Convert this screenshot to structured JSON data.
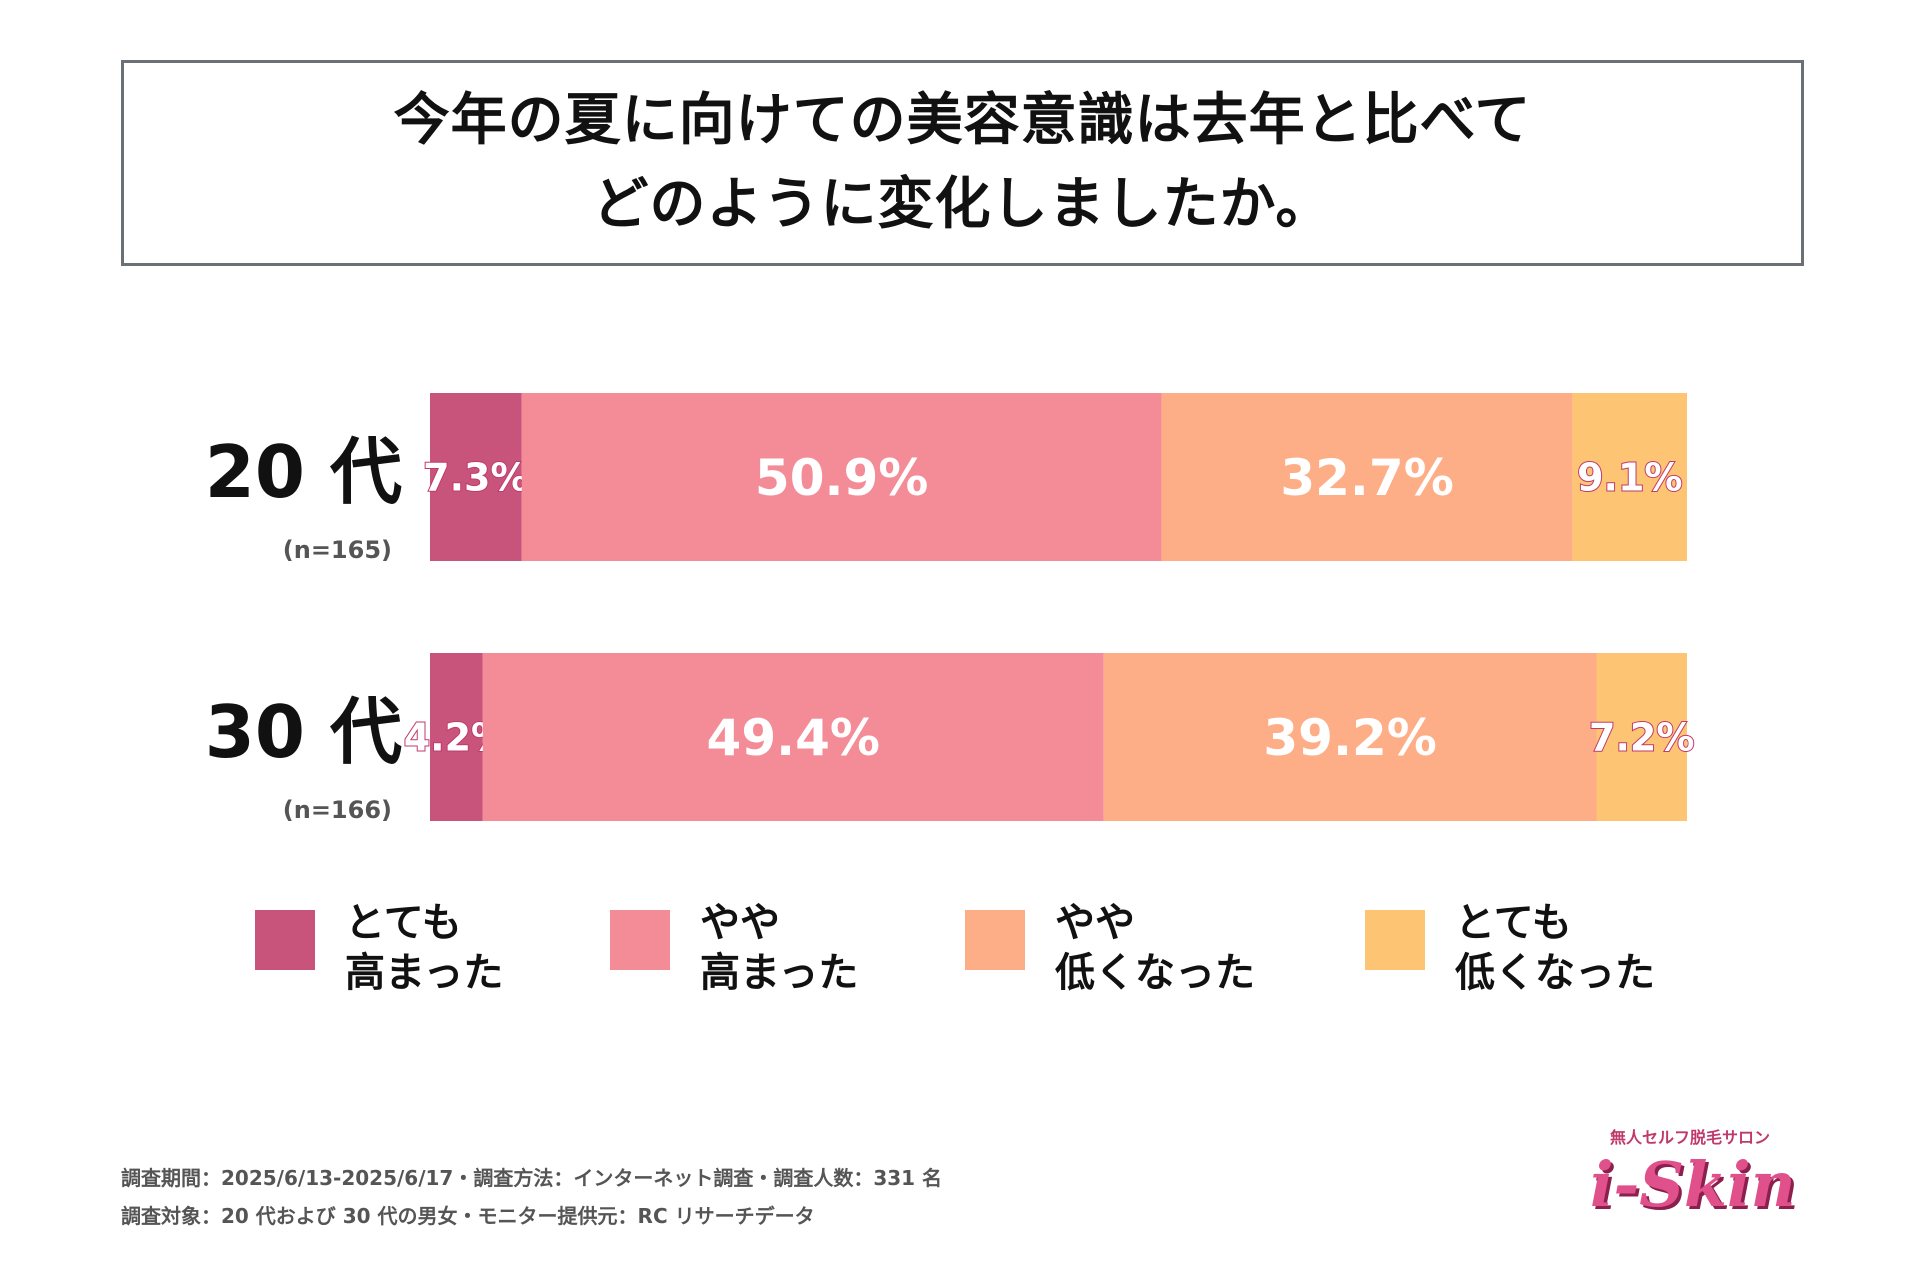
{
  "title": {
    "line1": "今年の夏に向けての美容意識は去年と比べて",
    "line2": "どのように変化しましたか。"
  },
  "chart_data": {
    "type": "bar",
    "orientation": "horizontal-stacked-100",
    "categories": [
      "20 代",
      "30 代"
    ],
    "category_notes": [
      "(n=165)",
      "(n=166)"
    ],
    "series": [
      {
        "name": "とても\n高まった",
        "values": [
          7.3,
          4.2
        ],
        "color": "#c9547b"
      },
      {
        "name": "やや\n高まった",
        "values": [
          50.9,
          49.4
        ],
        "color": "#f38c96"
      },
      {
        "name": "やや\n低くなった",
        "values": [
          32.7,
          39.2
        ],
        "color": "#fdae87"
      },
      {
        "name": "とても\n低くなった",
        "values": [
          9.1,
          7.2
        ],
        "color": "#fdc473"
      }
    ],
    "data_labels": [
      [
        "7.3%",
        "50.9%",
        "32.7%",
        "9.1%"
      ],
      [
        "4.2%",
        "49.4%",
        "39.2%",
        "7.2%"
      ]
    ],
    "unit": "%",
    "xlim": [
      0,
      100
    ],
    "title": "今年の夏に向けての美容意識は去年と比べてどのように変化しましたか。"
  },
  "legend": [
    {
      "line1": "とても",
      "line2": "高まった",
      "color": "#c9547b"
    },
    {
      "line1": "やや",
      "line2": "高まった",
      "color": "#f38c96"
    },
    {
      "line1": "やや",
      "line2": "低くなった",
      "color": "#fdae87"
    },
    {
      "line1": "とても",
      "line2": "低くなった",
      "color": "#fdc473"
    }
  ],
  "footer": {
    "line1": "調査期間：2025/6/13-2025/6/17・調査方法：インターネット調査・調査人数：331 名",
    "line2": "調査対象：20 代および 30 代の男女・モニター提供元：RC リサーチデータ"
  },
  "logo": {
    "subtitle": "無人セルフ脱毛サロン",
    "name": "i-Skin"
  }
}
